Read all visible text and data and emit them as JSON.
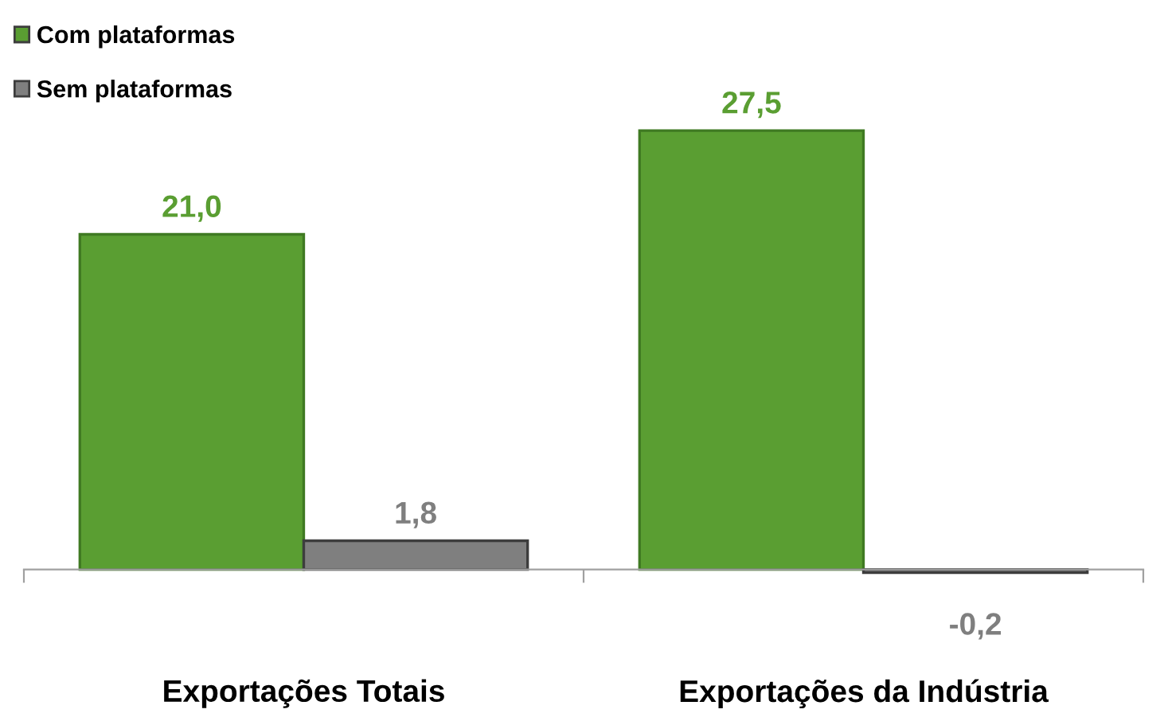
{
  "chart_data": {
    "type": "bar",
    "categories": [
      "Exportações Totais",
      "Exportações da Indústria"
    ],
    "series": [
      {
        "name": "Com plataformas",
        "color": "#5a9e32",
        "values": [
          21.0,
          27.5
        ],
        "value_labels": [
          "21,0",
          "27,5"
        ]
      },
      {
        "name": "Sem plataformas",
        "color": "#7f7f7f",
        "values": [
          1.8,
          -0.2
        ],
        "value_labels": [
          "1,8",
          "-0,2"
        ]
      }
    ],
    "legend": "top left",
    "grid": false
  }
}
